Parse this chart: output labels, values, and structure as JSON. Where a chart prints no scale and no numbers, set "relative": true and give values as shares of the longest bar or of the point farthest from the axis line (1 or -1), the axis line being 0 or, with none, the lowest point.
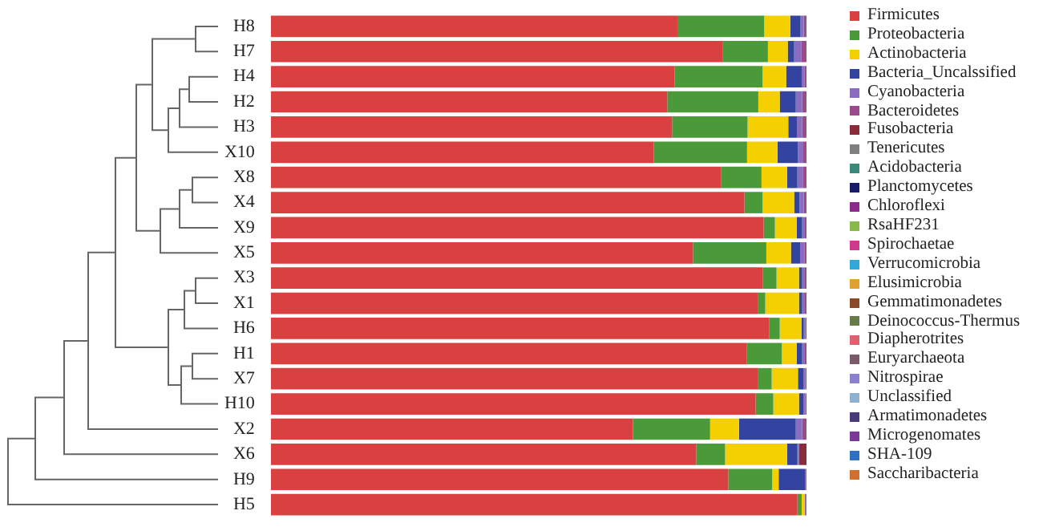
{
  "chart_data": {
    "type": "bar",
    "orientation": "horizontal",
    "stacked": true,
    "relative": true,
    "legend": "right",
    "categories": [
      "H8",
      "H7",
      "H4",
      "H2",
      "H3",
      "X10",
      "X8",
      "X4",
      "X9",
      "X5",
      "X3",
      "X1",
      "H6",
      "H1",
      "X7",
      "H10",
      "X2",
      "X6",
      "H9",
      "H5"
    ],
    "series": [
      {
        "name": "Firmicutes",
        "color": "#d94040",
        "values": [
          0.759,
          0.843,
          0.754,
          0.74,
          0.749,
          0.715,
          0.841,
          0.884,
          0.92,
          0.788,
          0.918,
          0.91,
          0.93,
          0.888,
          0.91,
          0.905,
          0.676,
          0.794,
          0.854,
          0.983
        ]
      },
      {
        "name": "Proteobacteria",
        "color": "#4a9a3a",
        "values": [
          0.162,
          0.085,
          0.164,
          0.17,
          0.141,
          0.174,
          0.075,
          0.034,
          0.021,
          0.137,
          0.026,
          0.013,
          0.02,
          0.066,
          0.025,
          0.033,
          0.144,
          0.054,
          0.082,
          0.008
        ]
      },
      {
        "name": "Actinobacteria",
        "color": "#f5d000",
        "values": [
          0.049,
          0.037,
          0.044,
          0.04,
          0.076,
          0.057,
          0.048,
          0.059,
          0.041,
          0.046,
          0.042,
          0.063,
          0.041,
          0.028,
          0.049,
          0.048,
          0.054,
          0.116,
          0.012,
          0.006
        ]
      },
      {
        "name": "Bacteria_Uncalssified",
        "color": "#3344a0",
        "values": [
          0.019,
          0.012,
          0.029,
          0.03,
          0.016,
          0.038,
          0.019,
          0.01,
          0.01,
          0.017,
          0.006,
          0.006,
          0.004,
          0.01,
          0.01,
          0.008,
          0.106,
          0.019,
          0.049,
          null
        ]
      },
      {
        "name": "Cyanobacteria",
        "color": "#8a6cc0",
        "values": [
          0.006,
          0.013,
          0.005,
          0.012,
          0.01,
          0.01,
          0.01,
          0.008,
          0.005,
          0.008,
          0.005,
          0.005,
          0.003,
          0.005,
          0.004,
          0.004,
          0.012,
          0.003,
          0.003,
          0.003
        ]
      },
      {
        "name": "Bacteroidetes",
        "color": "#9b4a8a",
        "values": [
          0.005,
          0.01,
          0.004,
          0.008,
          0.008,
          0.006,
          0.007,
          0.005,
          0.003,
          0.004,
          0.003,
          0.003,
          0.002,
          0.003,
          0.002,
          0.002,
          0.008,
          null,
          null,
          null
        ]
      },
      {
        "name": "Fusobacteria",
        "color": "#8b2a3a",
        "values": [
          null,
          null,
          null,
          null,
          null,
          null,
          null,
          null,
          null,
          null,
          null,
          null,
          null,
          null,
          null,
          null,
          null,
          0.014,
          null,
          null
        ]
      },
      {
        "name": "Tenericutes",
        "color": "#808080",
        "values": [
          null,
          null,
          null,
          null,
          null,
          null,
          null,
          null,
          null,
          null,
          null,
          null,
          null,
          null,
          null,
          null,
          null,
          null,
          null,
          null
        ]
      },
      {
        "name": "Acidobacteria",
        "color": "#3a8a7a",
        "values": [
          null,
          null,
          null,
          null,
          null,
          null,
          null,
          null,
          null,
          null,
          null,
          null,
          null,
          null,
          null,
          null,
          null,
          null,
          null,
          null
        ]
      },
      {
        "name": "Planctomycetes",
        "color": "#1a1a6a",
        "values": [
          null,
          null,
          null,
          null,
          null,
          null,
          null,
          null,
          null,
          null,
          null,
          null,
          null,
          null,
          null,
          null,
          null,
          null,
          null,
          null
        ]
      },
      {
        "name": "Chloroflexi",
        "color": "#8a2a8a",
        "values": [
          null,
          null,
          null,
          null,
          null,
          null,
          null,
          null,
          null,
          null,
          null,
          null,
          null,
          null,
          null,
          null,
          null,
          null,
          null,
          null
        ]
      },
      {
        "name": "RsaHF231",
        "color": "#8ab84a",
        "values": [
          null,
          null,
          null,
          null,
          null,
          null,
          null,
          null,
          null,
          null,
          null,
          null,
          null,
          null,
          null,
          null,
          null,
          null,
          null,
          null
        ]
      },
      {
        "name": "Spirochaetae",
        "color": "#d03a8a",
        "values": [
          null,
          null,
          null,
          null,
          null,
          null,
          null,
          null,
          null,
          null,
          null,
          null,
          null,
          null,
          null,
          null,
          null,
          null,
          null,
          null
        ]
      },
      {
        "name": "Verrucomicrobia",
        "color": "#30a8d8",
        "values": [
          null,
          null,
          null,
          null,
          null,
          null,
          null,
          null,
          null,
          null,
          null,
          null,
          null,
          null,
          null,
          null,
          null,
          null,
          null,
          null
        ]
      },
      {
        "name": "Elusimicrobia",
        "color": "#e0a030",
        "values": [
          null,
          null,
          null,
          null,
          null,
          null,
          null,
          null,
          null,
          null,
          null,
          null,
          null,
          null,
          null,
          null,
          null,
          null,
          null,
          null
        ]
      },
      {
        "name": "Gemmatimonadetes",
        "color": "#8a4a2a",
        "values": [
          null,
          null,
          null,
          null,
          null,
          null,
          null,
          null,
          null,
          null,
          null,
          null,
          null,
          null,
          null,
          null,
          null,
          null,
          null,
          null
        ]
      },
      {
        "name": "Deinococcus-Thermus",
        "color": "#6a7a4a",
        "values": [
          null,
          null,
          null,
          null,
          null,
          null,
          null,
          null,
          null,
          null,
          null,
          null,
          null,
          null,
          null,
          null,
          null,
          null,
          null,
          null
        ]
      },
      {
        "name": "Diapherotrites",
        "color": "#e06070",
        "values": [
          null,
          null,
          null,
          null,
          null,
          null,
          null,
          null,
          null,
          null,
          null,
          null,
          null,
          null,
          null,
          null,
          null,
          null,
          null,
          null
        ]
      },
      {
        "name": "Euryarchaeota",
        "color": "#7a5a6a",
        "values": [
          null,
          null,
          null,
          null,
          null,
          null,
          null,
          null,
          null,
          null,
          null,
          null,
          null,
          null,
          null,
          null,
          null,
          null,
          null,
          null
        ]
      },
      {
        "name": "Nitrospirae",
        "color": "#8a80d0",
        "values": [
          null,
          null,
          null,
          null,
          null,
          null,
          null,
          null,
          null,
          null,
          null,
          null,
          null,
          null,
          null,
          null,
          null,
          null,
          null,
          null
        ]
      },
      {
        "name": "Unclassified",
        "color": "#90b0d0",
        "values": [
          null,
          null,
          null,
          null,
          null,
          null,
          null,
          null,
          null,
          null,
          null,
          null,
          null,
          null,
          null,
          null,
          null,
          null,
          null,
          null
        ]
      },
      {
        "name": "Armatimonadetes",
        "color": "#4a3a7a",
        "values": [
          null,
          null,
          null,
          null,
          null,
          null,
          null,
          null,
          null,
          null,
          null,
          null,
          null,
          null,
          null,
          null,
          null,
          null,
          null,
          null
        ]
      },
      {
        "name": "Microgenomates",
        "color": "#7a3a9a",
        "values": [
          null,
          null,
          null,
          null,
          null,
          null,
          null,
          null,
          null,
          null,
          null,
          null,
          null,
          null,
          null,
          null,
          null,
          null,
          null,
          null
        ]
      },
      {
        "name": "SHA-109",
        "color": "#3070c0",
        "values": [
          null,
          null,
          null,
          null,
          null,
          null,
          null,
          null,
          null,
          null,
          null,
          null,
          null,
          null,
          null,
          null,
          null,
          null,
          null,
          null
        ]
      },
      {
        "name": "Saccharibacteria",
        "color": "#d07030",
        "values": [
          null,
          null,
          null,
          null,
          null,
          null,
          null,
          null,
          null,
          null,
          null,
          null,
          null,
          null,
          null,
          null,
          null,
          null,
          null,
          null
        ]
      }
    ]
  }
}
